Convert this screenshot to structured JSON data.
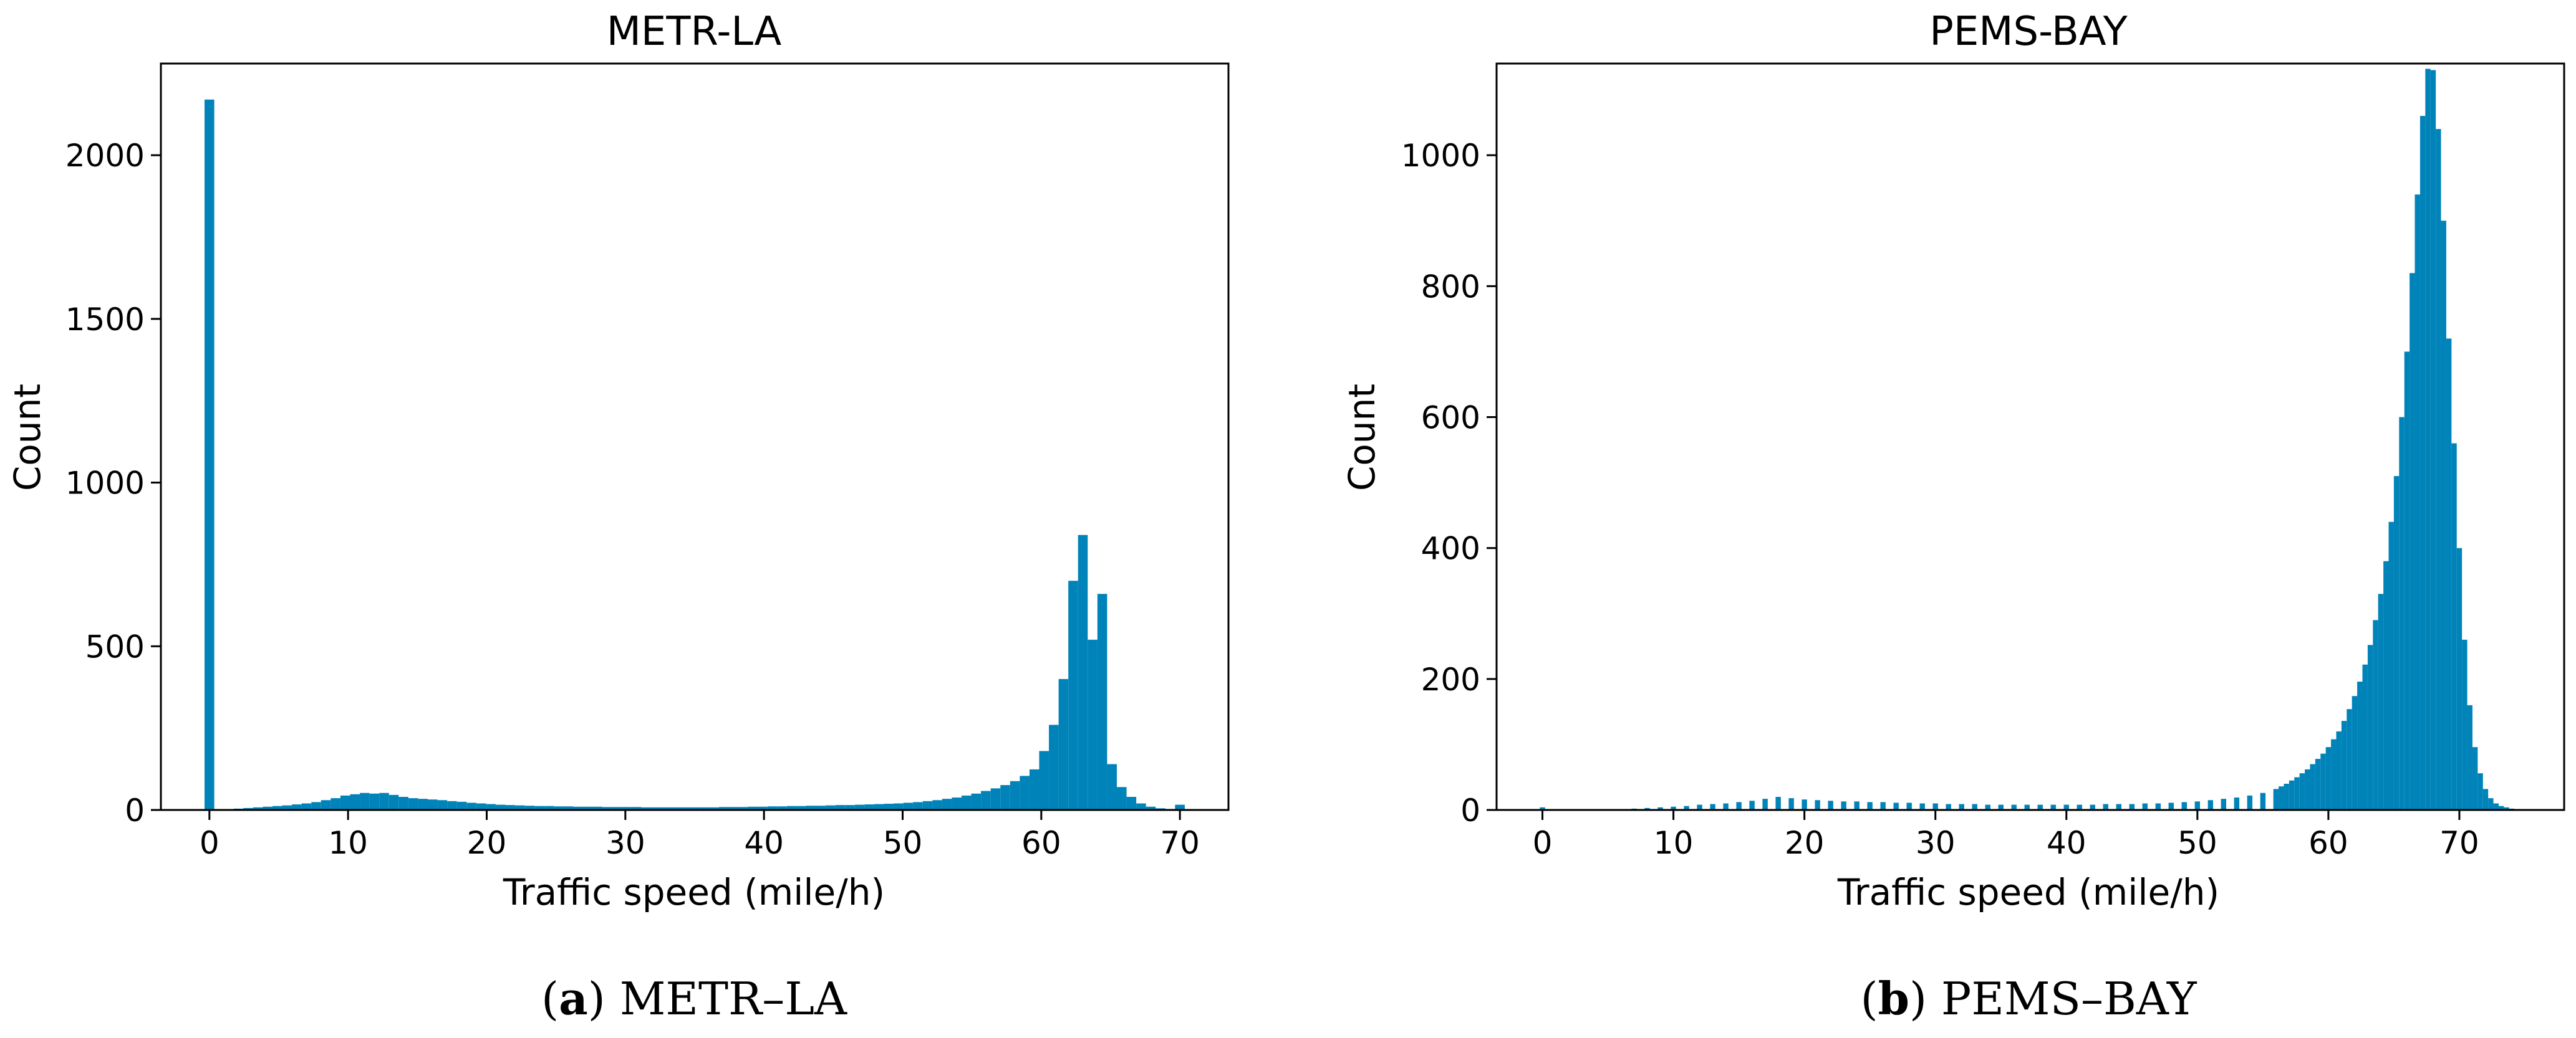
{
  "colors": {
    "bar": "#0083b8",
    "axis": "#000000",
    "background": "#ffffff"
  },
  "captions": [
    {
      "letter": "a",
      "open": "(",
      "close": ")",
      "text": " METR–LA"
    },
    {
      "letter": "b",
      "open": "(",
      "close": ")",
      "text": " PEMS–BAY"
    }
  ],
  "chart_data": [
    {
      "type": "bar",
      "title": "METR-LA",
      "xlabel": "Traffic speed (mile/h)",
      "ylabel": "Count",
      "xlim": [
        -3.5,
        73.5
      ],
      "ylim": [
        0,
        2280
      ],
      "xticks": [
        0,
        10,
        20,
        30,
        40,
        50,
        60,
        70
      ],
      "yticks": [
        0,
        500,
        1000,
        1500,
        2000
      ],
      "bin_width": 0.7,
      "bins": [
        [
          0,
          2170
        ],
        [
          2.1,
          4
        ],
        [
          2.8,
          6
        ],
        [
          3.5,
          8
        ],
        [
          4.2,
          10
        ],
        [
          4.9,
          12
        ],
        [
          5.6,
          14
        ],
        [
          6.3,
          17
        ],
        [
          7.0,
          20
        ],
        [
          7.7,
          24
        ],
        [
          8.4,
          30
        ],
        [
          9.1,
          36
        ],
        [
          9.8,
          44
        ],
        [
          10.5,
          48
        ],
        [
          11.2,
          52
        ],
        [
          11.9,
          50
        ],
        [
          12.6,
          52
        ],
        [
          13.3,
          46
        ],
        [
          14.0,
          40
        ],
        [
          14.7,
          36
        ],
        [
          15.4,
          34
        ],
        [
          16.1,
          32
        ],
        [
          16.8,
          30
        ],
        [
          17.5,
          27
        ],
        [
          18.2,
          25
        ],
        [
          18.9,
          22
        ],
        [
          19.6,
          20
        ],
        [
          20.3,
          18
        ],
        [
          21.0,
          16
        ],
        [
          21.7,
          15
        ],
        [
          22.4,
          14
        ],
        [
          23.1,
          13
        ],
        [
          23.8,
          12
        ],
        [
          24.5,
          12
        ],
        [
          25.2,
          11
        ],
        [
          25.9,
          11
        ],
        [
          26.6,
          10
        ],
        [
          27.3,
          10
        ],
        [
          28.0,
          10
        ],
        [
          28.7,
          9
        ],
        [
          29.4,
          9
        ],
        [
          30.1,
          9
        ],
        [
          30.8,
          9
        ],
        [
          31.5,
          8
        ],
        [
          32.2,
          8
        ],
        [
          32.9,
          8
        ],
        [
          33.6,
          8
        ],
        [
          34.3,
          8
        ],
        [
          35.0,
          8
        ],
        [
          35.7,
          8
        ],
        [
          36.4,
          8
        ],
        [
          37.1,
          9
        ],
        [
          37.8,
          9
        ],
        [
          38.5,
          9
        ],
        [
          39.2,
          10
        ],
        [
          39.9,
          10
        ],
        [
          40.6,
          11
        ],
        [
          41.3,
          11
        ],
        [
          42.0,
          12
        ],
        [
          42.7,
          12
        ],
        [
          43.4,
          13
        ],
        [
          44.1,
          13
        ],
        [
          44.8,
          14
        ],
        [
          45.5,
          15
        ],
        [
          46.2,
          15
        ],
        [
          46.9,
          16
        ],
        [
          47.6,
          17
        ],
        [
          48.3,
          18
        ],
        [
          49.0,
          19
        ],
        [
          49.7,
          20
        ],
        [
          50.4,
          22
        ],
        [
          51.1,
          24
        ],
        [
          51.8,
          27
        ],
        [
          52.5,
          30
        ],
        [
          53.2,
          34
        ],
        [
          53.9,
          38
        ],
        [
          54.6,
          44
        ],
        [
          55.3,
          50
        ],
        [
          56.0,
          58
        ],
        [
          56.7,
          66
        ],
        [
          57.4,
          76
        ],
        [
          58.1,
          88
        ],
        [
          58.8,
          104
        ],
        [
          59.5,
          124
        ],
        [
          60.2,
          180
        ],
        [
          60.9,
          260
        ],
        [
          61.6,
          400
        ],
        [
          62.3,
          700
        ],
        [
          63.0,
          840
        ],
        [
          63.7,
          520
        ],
        [
          64.4,
          660
        ],
        [
          65.1,
          140
        ],
        [
          65.8,
          70
        ],
        [
          66.5,
          40
        ],
        [
          67.2,
          20
        ],
        [
          67.9,
          10
        ],
        [
          68.6,
          5
        ],
        [
          69.3,
          3
        ],
        [
          70.0,
          16
        ],
        [
          70.7,
          2
        ]
      ]
    },
    {
      "type": "bar",
      "title": "PEMS-BAY",
      "xlabel": "Traffic speed (mile/h)",
      "ylabel": "Count",
      "xlim": [
        -3.5,
        78
      ],
      "ylim": [
        0,
        1140
      ],
      "xticks": [
        0,
        10,
        20,
        30,
        40,
        50,
        60,
        70
      ],
      "yticks": [
        0,
        200,
        400,
        600,
        800,
        1000
      ],
      "bin_width": 0.4,
      "bins": [
        [
          0.0,
          4
        ],
        [
          6.0,
          1
        ],
        [
          7.0,
          2
        ],
        [
          8.0,
          3
        ],
        [
          9.0,
          4
        ],
        [
          10.0,
          5
        ],
        [
          11.0,
          6
        ],
        [
          12.0,
          8
        ],
        [
          13.0,
          9
        ],
        [
          14.0,
          10
        ],
        [
          15.0,
          12
        ],
        [
          16.0,
          14
        ],
        [
          17.0,
          17
        ],
        [
          18.0,
          20
        ],
        [
          19.0,
          18
        ],
        [
          20.0,
          16
        ],
        [
          21.0,
          15
        ],
        [
          22.0,
          14
        ],
        [
          23.0,
          13
        ],
        [
          24.0,
          13
        ],
        [
          25.0,
          12
        ],
        [
          26.0,
          12
        ],
        [
          27.0,
          11
        ],
        [
          28.0,
          11
        ],
        [
          29.0,
          10
        ],
        [
          30.0,
          10
        ],
        [
          31.0,
          9
        ],
        [
          32.0,
          9
        ],
        [
          33.0,
          9
        ],
        [
          34.0,
          8
        ],
        [
          35.0,
          8
        ],
        [
          36.0,
          8
        ],
        [
          37.0,
          8
        ],
        [
          38.0,
          8
        ],
        [
          39.0,
          8
        ],
        [
          40.0,
          8
        ],
        [
          41.0,
          8
        ],
        [
          42.0,
          8
        ],
        [
          43.0,
          9
        ],
        [
          44.0,
          9
        ],
        [
          45.0,
          9
        ],
        [
          46.0,
          10
        ],
        [
          47.0,
          10
        ],
        [
          48.0,
          11
        ],
        [
          49.0,
          12
        ],
        [
          50.0,
          13
        ],
        [
          51.0,
          15
        ],
        [
          52.0,
          17
        ],
        [
          53.0,
          19
        ],
        [
          54.0,
          22
        ],
        [
          55.0,
          26
        ],
        [
          56.0,
          32
        ],
        [
          56.4,
          36
        ],
        [
          56.8,
          40
        ],
        [
          57.2,
          45
        ],
        [
          57.6,
          50
        ],
        [
          58.0,
          56
        ],
        [
          58.4,
          62
        ],
        [
          58.8,
          70
        ],
        [
          59.2,
          78
        ],
        [
          59.6,
          86
        ],
        [
          60.0,
          96
        ],
        [
          60.4,
          108
        ],
        [
          60.8,
          120
        ],
        [
          61.2,
          136
        ],
        [
          61.6,
          154
        ],
        [
          62.0,
          174
        ],
        [
          62.4,
          196
        ],
        [
          62.8,
          222
        ],
        [
          63.2,
          252
        ],
        [
          63.6,
          290
        ],
        [
          64.0,
          330
        ],
        [
          64.4,
          380
        ],
        [
          64.8,
          440
        ],
        [
          65.2,
          510
        ],
        [
          65.6,
          600
        ],
        [
          66.0,
          700
        ],
        [
          66.4,
          820
        ],
        [
          66.8,
          940
        ],
        [
          67.2,
          1060
        ],
        [
          67.6,
          1132
        ],
        [
          68.0,
          1130
        ],
        [
          68.4,
          1040
        ],
        [
          68.8,
          900
        ],
        [
          69.2,
          720
        ],
        [
          69.6,
          560
        ],
        [
          70.0,
          400
        ],
        [
          70.4,
          260
        ],
        [
          70.8,
          160
        ],
        [
          71.2,
          96
        ],
        [
          71.6,
          56
        ],
        [
          72.0,
          32
        ],
        [
          72.4,
          18
        ],
        [
          72.8,
          10
        ],
        [
          73.2,
          6
        ],
        [
          73.6,
          4
        ],
        [
          74.0,
          2
        ],
        [
          74.4,
          1
        ]
      ]
    }
  ]
}
